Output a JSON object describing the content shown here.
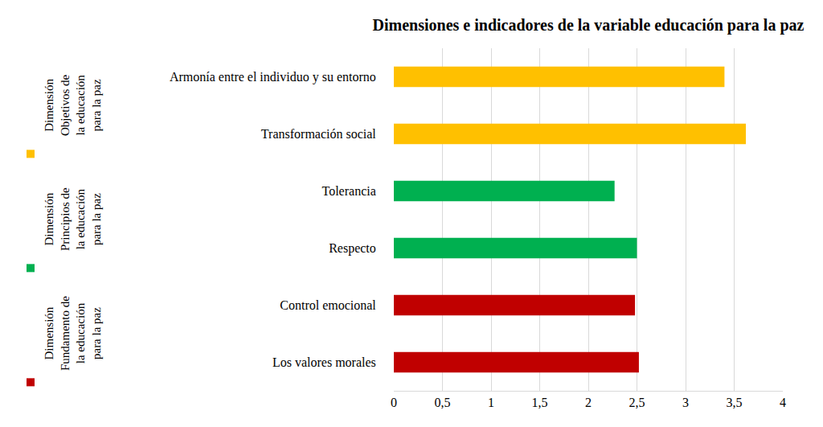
{
  "chart_data": {
    "type": "bar",
    "orientation": "horizontal",
    "title": "Dimensiones e indicadores de la variable educación para la paz",
    "categories": [
      "Armonía entre el individuo y su entorno",
      "Transformación social",
      "Tolerancia",
      "Respecto",
      "Control emocional",
      "Los valores morales"
    ],
    "series": [
      {
        "name": "Dimensión Objetivos de la educación para la paz",
        "color": "#ffc000",
        "values": [
          3.4,
          3.62,
          null,
          null,
          null,
          null
        ]
      },
      {
        "name": "Dimensión Principios de la educación para la paz",
        "color": "#00b050",
        "values": [
          null,
          null,
          2.27,
          2.5,
          null,
          null
        ]
      },
      {
        "name": "Dimensión Fundamento de la educación para la paz",
        "color": "#c00000",
        "values": [
          null,
          null,
          null,
          null,
          2.48,
          2.52
        ]
      }
    ],
    "xlim": [
      0,
      4
    ],
    "xticks": [
      0,
      {
        "value": 0.5,
        "label": "0,5"
      },
      1,
      {
        "value": 1.5,
        "label": "1,5"
      },
      2,
      {
        "value": 2.5,
        "label": "2,5"
      },
      3,
      {
        "value": 3.5,
        "label": "3,5"
      },
      4
    ],
    "grid": true
  }
}
